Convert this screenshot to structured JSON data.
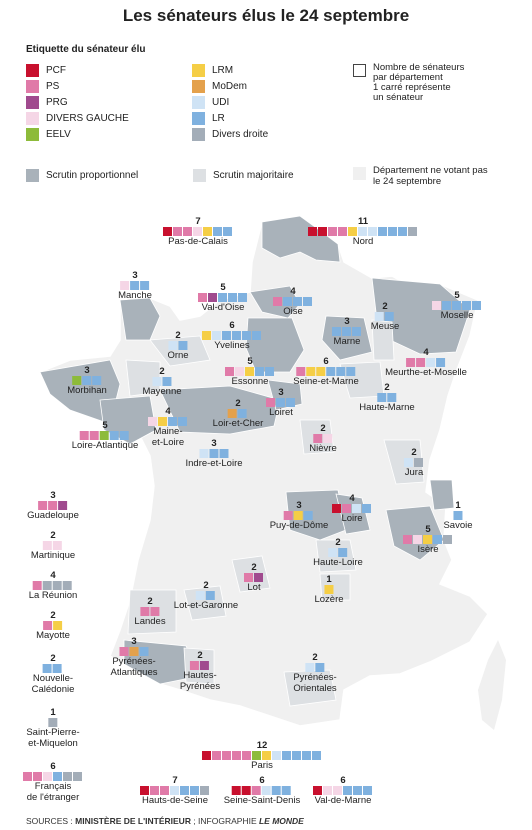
{
  "title": "Les sénateurs élus le 24 septembre",
  "colors": {
    "PCF": "#c8102e",
    "PS": "#e07aa8",
    "PRG": "#a04a8e",
    "DIVERS GAUCHE": "#f5d6e6",
    "EELV": "#8dbb3a",
    "LRM": "#f5ce46",
    "MoDem": "#e4a14c",
    "UDI": "#cfe3f5",
    "LR": "#7fb1df",
    "Divers droite": "#a3adb8",
    "proportional": "#a9b2ba",
    "majority": "#dde0e3",
    "not_voting": "#f0f0f0"
  },
  "legend": {
    "heading": "Etiquette du sénateur élu",
    "parties": [
      "PCF",
      "PS",
      "PRG",
      "DIVERS GAUCHE",
      "EELV",
      "LRM",
      "MoDem",
      "UDI",
      "LR",
      "Divers droite"
    ],
    "box_note": "Nombre de sénateurs\npar département\n1 carré représente\nun sénateur",
    "modes": {
      "proportional": "Scrutin proportionnel",
      "majority": "Scrutin majoritaire",
      "not_voting": "Département ne votant pas\nle 24 septembre"
    }
  },
  "departments": [
    {
      "name": "Pas-de-Calais",
      "total": "7",
      "seats": [
        "PCF",
        "PS",
        "PS",
        "DIVERS GAUCHE",
        "LRM",
        "LR",
        "LR"
      ]
    },
    {
      "name": "Nord",
      "total": "11",
      "seats": [
        "PCF",
        "PCF",
        "PS",
        "PS",
        "LRM",
        "UDI",
        "UDI",
        "LR",
        "LR",
        "LR",
        "Divers droite"
      ]
    },
    {
      "name": "Manche",
      "total": "3",
      "seats": [
        "DIVERS GAUCHE",
        "LR",
        "LR"
      ]
    },
    {
      "name": "Val-d'Oise",
      "total": "5",
      "seats": [
        "PS",
        "PRG",
        "LR",
        "LR",
        "LR"
      ]
    },
    {
      "name": "Oise",
      "total": "4",
      "seats": [
        "PS",
        "LR",
        "LR",
        "LR"
      ]
    },
    {
      "name": "Meuse",
      "total": "2",
      "seats": [
        "UDI",
        "LR"
      ]
    },
    {
      "name": "Moselle",
      "total": "5",
      "seats": [
        "DIVERS GAUCHE",
        "LR",
        "LR",
        "LR",
        "LR"
      ]
    },
    {
      "name": "Yvelines",
      "total": "6",
      "seats": [
        "LRM",
        "UDI",
        "LR",
        "LR",
        "LR",
        "LR"
      ]
    },
    {
      "name": "Orne",
      "total": "2",
      "seats": [
        "UDI",
        "LR"
      ]
    },
    {
      "name": "Marne",
      "total": "3",
      "seats": [
        "LR",
        "LR",
        "LR"
      ]
    },
    {
      "name": "Mayenne",
      "total": "2",
      "seats": [
        "UDI",
        "LR"
      ]
    },
    {
      "name": "Essonne",
      "total": "5",
      "seats": [
        "PS",
        "DIVERS GAUCHE",
        "LRM",
        "LR",
        "LR"
      ]
    },
    {
      "name": "Seine-et-Marne",
      "total": "6",
      "seats": [
        "PS",
        "LRM",
        "LRM",
        "LR",
        "LR",
        "LR"
      ]
    },
    {
      "name": "Meurthe-et-Moselle",
      "total": "4",
      "seats": [
        "PS",
        "PS",
        "UDI",
        "LR"
      ]
    },
    {
      "name": "Morbihan",
      "total": "3",
      "seats": [
        "EELV",
        "LR",
        "LR"
      ]
    },
    {
      "name": "Loiret",
      "total": "3",
      "seats": [
        "PS",
        "LR",
        "LR"
      ]
    },
    {
      "name": "Haute-Marne",
      "total": "2",
      "seats": [
        "LR",
        "LR"
      ]
    },
    {
      "name": "Loir-et-Cher",
      "total": "2",
      "seats": [
        "MoDem",
        "LR"
      ]
    },
    {
      "name": "Maine-et-Loire",
      "total": "4",
      "seats": [
        "DIVERS GAUCHE",
        "LRM",
        "LR",
        "LR"
      ]
    },
    {
      "name": "Loire-Atlantique",
      "total": "5",
      "seats": [
        "PS",
        "PS",
        "EELV",
        "LR",
        "LR"
      ]
    },
    {
      "name": "Nièvre",
      "total": "2",
      "seats": [
        "PS",
        "DIVERS GAUCHE"
      ]
    },
    {
      "name": "Indre-et-Loire",
      "total": "3",
      "seats": [
        "UDI",
        "LR",
        "LR"
      ]
    },
    {
      "name": "Jura",
      "total": "2",
      "seats": [
        "UDI",
        "Divers droite"
      ]
    },
    {
      "name": "Guadeloupe",
      "total": "3",
      "seats": [
        "PS",
        "PS",
        "PRG"
      ]
    },
    {
      "name": "Puy-de-Dôme",
      "total": "3",
      "seats": [
        "PS",
        "LRM",
        "LR"
      ]
    },
    {
      "name": "Loire",
      "total": "4",
      "seats": [
        "PCF",
        "PS",
        "UDI",
        "LR"
      ]
    },
    {
      "name": "Savoie",
      "total": "1",
      "seats": [
        "LR"
      ]
    },
    {
      "name": "Martinique",
      "total": "2",
      "seats": [
        "DIVERS GAUCHE",
        "DIVERS GAUCHE"
      ]
    },
    {
      "name": "Isère",
      "total": "5",
      "seats": [
        "PS",
        "DIVERS GAUCHE",
        "LRM",
        "LR",
        "Divers droite"
      ]
    },
    {
      "name": "Haute-Loire",
      "total": "2",
      "seats": [
        "UDI",
        "LR"
      ]
    },
    {
      "name": "La Réunion",
      "total": "4",
      "seats": [
        "PS",
        "Divers droite",
        "Divers droite",
        "Divers droite"
      ]
    },
    {
      "name": "Lot",
      "total": "2",
      "seats": [
        "PS",
        "PRG"
      ]
    },
    {
      "name": "Lot-et-Garonne",
      "total": "2",
      "seats": [
        "UDI",
        "LR"
      ]
    },
    {
      "name": "Lozère",
      "total": "1",
      "seats": [
        "LRM"
      ]
    },
    {
      "name": "Mayotte",
      "total": "2",
      "seats": [
        "PS",
        "LRM"
      ]
    },
    {
      "name": "Landes",
      "total": "2",
      "seats": [
        "PS",
        "PS"
      ]
    },
    {
      "name": "Nouvelle-Calédonie",
      "total": "2",
      "seats": [
        "LR",
        "LR"
      ]
    },
    {
      "name": "Pyrénées-Atlantiques",
      "total": "3",
      "seats": [
        "PS",
        "MoDem",
        "LR"
      ]
    },
    {
      "name": "Hautes-Pyrénées",
      "total": "2",
      "seats": [
        "PS",
        "PRG"
      ]
    },
    {
      "name": "Pyrénées-Orientales",
      "total": "2",
      "seats": [
        "UDI",
        "LR"
      ]
    },
    {
      "name": "Saint-Pierre-et-Miquelon",
      "total": "1",
      "seats": [
        "Divers droite"
      ]
    },
    {
      "name": "Paris",
      "total": "12",
      "seats": [
        "PCF",
        "PS",
        "PS",
        "PS",
        "PS",
        "EELV",
        "LRM",
        "UDI",
        "LR",
        "LR",
        "LR",
        "LR"
      ]
    },
    {
      "name": "Français de l'étranger",
      "total": "6",
      "seats": [
        "PS",
        "PS",
        "DIVERS GAUCHE",
        "LR",
        "Divers droite",
        "Divers droite"
      ]
    },
    {
      "name": "Hauts-de-Seine",
      "total": "7",
      "seats": [
        "PCF",
        "PS",
        "PS",
        "UDI",
        "LR",
        "LR",
        "Divers droite"
      ]
    },
    {
      "name": "Seine-Saint-Denis",
      "total": "6",
      "seats": [
        "PCF",
        "PCF",
        "PS",
        "UDI",
        "LR",
        "LR"
      ]
    },
    {
      "name": "Val-de-Marne",
      "total": "6",
      "seats": [
        "PCF",
        "DIVERS GAUCHE",
        "DIVERS GAUCHE",
        "LR",
        "LR",
        "LR"
      ]
    }
  ],
  "source": {
    "prefix": "SOURCES : ",
    "ministry": "MINISTÈRE DE L'INTÉRIEUR",
    "mid": " ; INFOGRAPHIE ",
    "paper": "LE MONDE"
  }
}
